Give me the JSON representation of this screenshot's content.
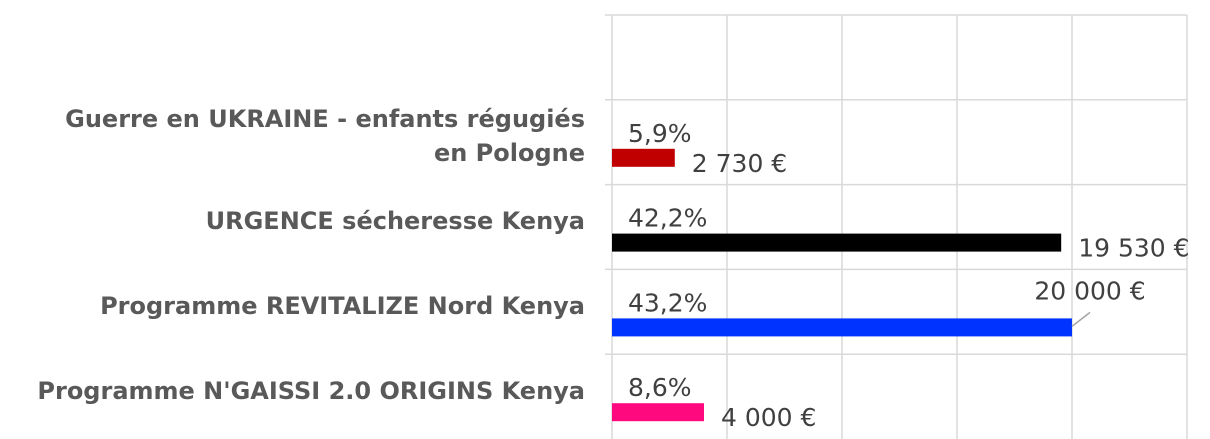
{
  "chart_data": {
    "type": "hbar",
    "categories": [
      "Guerre en UKRAINE - enfants régugiés en Pologne",
      "URGENCE sécheresse Kenya",
      "Programme REVITALIZE Nord Kenya",
      "Programme N'GAISSI 2.0 ORIGINS Kenya"
    ],
    "values": [
      2730,
      19530,
      20000,
      4000
    ],
    "value_labels": [
      "2 730 €",
      "19 530 €",
      "20 000 €",
      "4 000 €"
    ],
    "shares": [
      5.9,
      42.2,
      43.2,
      8.6
    ],
    "share_labels": [
      "5,9%",
      "42,2%",
      "43,2%",
      "8,6%"
    ],
    "colors": [
      "#c00000",
      "#000000",
      "#0033ff",
      "#ff0a7e"
    ],
    "xlim": [
      0,
      25000
    ],
    "xticks": [
      0,
      5000,
      10000,
      15000,
      20000,
      25000
    ],
    "grid": true
  }
}
